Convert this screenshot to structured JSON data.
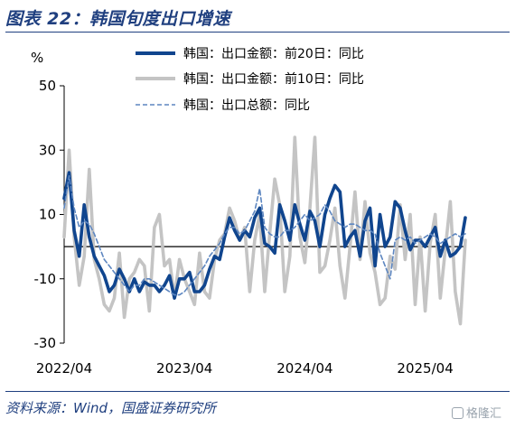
{
  "title": "图表 22：韩国旬度出口增速",
  "source": "资料来源：Wind，国盛证券研究所",
  "watermark": "格隆汇",
  "chart_data": {
    "type": "line",
    "ylabel": "%",
    "ylim": [
      -30,
      50
    ],
    "yticks": [
      50,
      30,
      10,
      -10,
      -30
    ],
    "xlim": [
      0,
      40
    ],
    "xticks": [
      {
        "pos": 0,
        "label": "2022/04"
      },
      {
        "pos": 12,
        "label": "2023/04"
      },
      {
        "pos": 24,
        "label": "2024/04"
      },
      {
        "pos": 36,
        "label": "2025/04"
      }
    ],
    "legend_position": "top",
    "series": [
      {
        "name": "韩国：出口金额：前20日：同比",
        "color": "#10458e",
        "style": "solid-thick",
        "x": [
          0,
          0.5,
          1,
          1.5,
          2,
          2.5,
          3,
          3.5,
          4,
          4.5,
          5,
          5.5,
          6,
          6.5,
          7,
          7.5,
          8,
          8.5,
          9,
          9.5,
          10,
          10.5,
          11,
          11.5,
          12,
          12.5,
          13,
          13.5,
          14,
          14.5,
          15,
          15.5,
          16,
          16.5,
          17,
          17.5,
          18,
          18.5,
          19,
          19.5,
          20,
          20.5,
          21,
          21.5,
          22,
          22.5,
          23,
          23.5,
          24,
          24.5,
          25,
          25.5,
          26,
          26.5,
          27,
          27.5,
          28,
          28.5,
          29,
          29.5,
          30,
          30.5,
          31,
          31.5,
          32,
          32.5,
          33,
          33.5,
          34,
          34.5,
          35,
          35.5,
          36,
          36.5,
          37,
          37.5,
          38,
          38.5,
          39,
          39.5,
          40
        ],
        "values": [
          15,
          23,
          5,
          -3,
          13,
          3,
          -3,
          -6,
          -9,
          -14,
          -12,
          -7,
          -10,
          -14,
          -10,
          -14,
          -11,
          -12,
          -12,
          -14,
          -12,
          -9,
          -16,
          -10,
          -10,
          -8,
          -14,
          -14,
          -12,
          -7,
          -3,
          -4,
          3,
          9,
          5,
          2,
          5,
          3,
          9,
          12,
          1,
          0,
          -2,
          13,
          8,
          2,
          13,
          7,
          2,
          11,
          8,
          0,
          10,
          15,
          19,
          17,
          0,
          3,
          5,
          -3,
          8,
          12,
          -6,
          10,
          0,
          3,
          14,
          12,
          5,
          -1,
          2,
          2,
          0,
          3,
          6,
          -3,
          2,
          -3,
          -2,
          0,
          9
        ]
      },
      {
        "name": "韩国：出口金额：前10日：同比",
        "color": "#c4c4c4",
        "style": "solid-thick",
        "x": [
          0,
          0.5,
          1,
          1.5,
          2,
          2.5,
          3,
          3.5,
          4,
          4.5,
          5,
          5.5,
          6,
          6.5,
          7,
          7.5,
          8,
          8.5,
          9,
          9.5,
          10,
          10.5,
          11,
          11.5,
          12,
          12.5,
          13,
          13.5,
          14,
          14.5,
          15,
          15.5,
          16,
          16.5,
          17,
          17.5,
          18,
          18.5,
          19,
          19.5,
          20,
          20.5,
          21,
          21.5,
          22,
          22.5,
          23,
          23.5,
          24,
          24.5,
          25,
          25.5,
          26,
          26.5,
          27,
          27.5,
          28,
          28.5,
          29,
          29.5,
          30,
          30.5,
          31,
          31.5,
          32,
          32.5,
          33,
          33.5,
          34,
          34.5,
          35,
          35.5,
          36,
          36.5,
          37,
          37.5,
          38,
          38.5,
          39,
          39.5,
          40
        ],
        "values": [
          3,
          30,
          3,
          -12,
          -3,
          24,
          -4,
          -10,
          -18,
          -20,
          -16,
          -2,
          -22,
          -10,
          -8,
          -4,
          -6,
          -20,
          6,
          10,
          -6,
          -4,
          -16,
          -4,
          -10,
          -14,
          -18,
          -2,
          -14,
          -16,
          -4,
          2,
          4,
          12,
          8,
          2,
          6,
          -14,
          2,
          10,
          -14,
          4,
          21,
          13,
          -14,
          -3,
          34,
          3,
          -5,
          12,
          34,
          -8,
          -6,
          2,
          12,
          -6,
          -16,
          0,
          17,
          -4,
          14,
          -2,
          -8,
          -18,
          -16,
          -3,
          -7,
          13,
          -4,
          10,
          -18,
          3,
          -20,
          1,
          10,
          -16,
          -1,
          14,
          -14,
          -24,
          2
        ]
      },
      {
        "name": "韩国：出口总额：同比",
        "color": "#5d86c0",
        "style": "dashed",
        "x": [
          0,
          0.5,
          1,
          1.5,
          2,
          2.5,
          3,
          3.5,
          4,
          4.5,
          5,
          5.5,
          6,
          6.5,
          7,
          7.5,
          8,
          8.5,
          9,
          9.5,
          10,
          10.5,
          11,
          11.5,
          12,
          12.5,
          13,
          13.5,
          14,
          14.5,
          15,
          15.5,
          16,
          16.5,
          17,
          17.5,
          18,
          18.5,
          19,
          19.5,
          20,
          20.5,
          21,
          21.5,
          22,
          22.5,
          23,
          23.5,
          24,
          24.5,
          25,
          25.5,
          26,
          26.5,
          27,
          27.5,
          28,
          28.5,
          29,
          29.5,
          30,
          30.5,
          31,
          31.5,
          32,
          32.5,
          33,
          33.5,
          34,
          34.5,
          35,
          35.5,
          36,
          36.5,
          37,
          37.5,
          38,
          38.5,
          39,
          39.5,
          40
        ],
        "values": [
          12,
          22,
          12,
          6,
          8,
          7,
          4,
          0,
          -4,
          -6,
          -8,
          -10,
          -12,
          -14,
          -12,
          -12,
          -10,
          -10,
          -11,
          -12,
          -13,
          -14,
          -15,
          -15,
          -14,
          -12,
          -10,
          -8,
          -6,
          -3,
          -1,
          1,
          4,
          6,
          6,
          4,
          5,
          8,
          11,
          18,
          6,
          4,
          3,
          3,
          5,
          5,
          6,
          8,
          10,
          8,
          9,
          10,
          13,
          11,
          8,
          7,
          6,
          7,
          7,
          6,
          5,
          5,
          4,
          -2,
          -6,
          -10,
          2,
          3,
          2,
          3,
          1,
          2,
          3,
          4,
          3,
          1,
          2,
          3,
          4,
          3,
          4
        ]
      }
    ]
  }
}
